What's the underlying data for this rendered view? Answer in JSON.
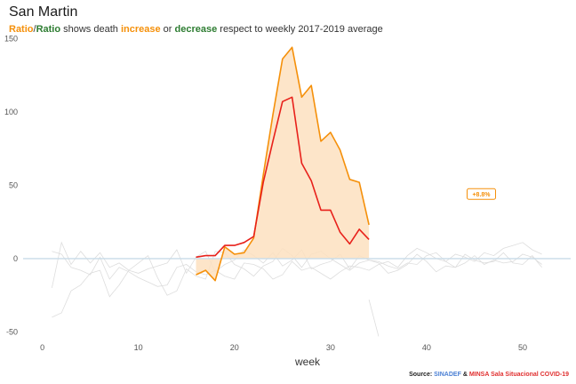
{
  "title": "San Martin",
  "subtitle": {
    "ratio_orange": "Ratio",
    "slash": "/",
    "ratio_green": "Ratio",
    "text1": " shows death ",
    "increase": "increase",
    "text2": " or ",
    "decrease": "decrease",
    "text3": " respect to weekly 2017-2019 average"
  },
  "source": {
    "label": "Source:",
    "sinadef": "SINADEF",
    "amp": "&",
    "minsa": "MINSA Sala Situacional COVID-19"
  },
  "colors": {
    "orange": "#f5900a",
    "red": "#e8211b",
    "fill": "#fde1c0",
    "baseline": "#c8dbe8",
    "gray": "#dddddd",
    "green": "#2e7d32"
  },
  "chart_data": {
    "type": "line",
    "xlabel": "week",
    "ylabel": "",
    "xlim": [
      -2,
      55
    ],
    "ylim": [
      -57,
      152
    ],
    "x_ticks": [
      0,
      10,
      20,
      30,
      40,
      50
    ],
    "y_ticks": [
      -50,
      0,
      50,
      100,
      150
    ],
    "series": [
      {
        "role": "orange",
        "x": [
          16,
          17,
          18,
          19,
          20,
          21,
          22,
          23,
          24,
          25,
          26,
          27,
          28,
          29,
          30,
          31,
          32,
          33,
          34
        ],
        "values": [
          -11,
          -8,
          -15,
          8,
          3,
          4,
          14,
          57,
          98,
          136,
          144,
          110,
          118,
          80,
          86,
          74,
          54,
          52,
          23
        ]
      },
      {
        "role": "red",
        "x": [
          16,
          17,
          18,
          19,
          20,
          21,
          22,
          23,
          24,
          25,
          26,
          27,
          28,
          29,
          30,
          31,
          32,
          33,
          34
        ],
        "values": [
          1,
          2,
          2,
          9,
          9,
          11,
          15,
          52,
          80,
          107,
          110,
          65,
          53,
          33,
          33,
          18,
          10,
          20,
          13
        ]
      },
      {
        "role": "gray",
        "x": [
          1,
          2,
          3,
          4,
          5,
          6,
          7,
          8,
          9,
          10,
          11,
          12,
          13,
          14,
          15,
          16,
          17,
          18,
          19,
          20,
          21,
          22,
          23,
          24,
          25,
          26,
          27,
          28,
          29,
          30,
          31,
          32,
          33,
          34,
          35,
          36,
          37,
          38,
          39,
          40,
          41,
          42,
          43,
          44,
          45,
          46,
          47,
          48,
          49,
          50,
          51,
          52
        ],
        "values": [
          -20,
          11,
          -4,
          5,
          -3,
          4,
          -6,
          -3,
          -8,
          -10,
          -7,
          -5,
          -3,
          6,
          -10,
          1,
          5,
          -9,
          -4,
          -1,
          6,
          2,
          -3,
          4,
          -5,
          -1,
          6,
          -7,
          -4,
          -2,
          3,
          -7,
          2,
          -1,
          -3,
          -10,
          -8,
          -4,
          3,
          -2,
          -9,
          -5,
          -6,
          3,
          -1,
          -3,
          -2,
          4,
          -3,
          -4,
          2,
          -6
        ]
      },
      {
        "role": "gray",
        "x": [
          1,
          2,
          3,
          4,
          5,
          6,
          7,
          8,
          9,
          10,
          11,
          12,
          13,
          14,
          15,
          16,
          17,
          18,
          19,
          20,
          21,
          22,
          23,
          24,
          25,
          26,
          27,
          28,
          29,
          30,
          31,
          32,
          33,
          34,
          35,
          36,
          37,
          38,
          39,
          40,
          41,
          42,
          43,
          44,
          45,
          46,
          47,
          48,
          49,
          50,
          51,
          52
        ],
        "values": [
          -40,
          -37,
          -22,
          -18,
          -10,
          -8,
          -26,
          -18,
          -8,
          -3,
          2,
          -13,
          -25,
          -22,
          -7,
          -12,
          -14,
          5,
          4,
          -4,
          -7,
          -12,
          -5,
          -2,
          7,
          2,
          -6,
          3,
          5,
          0,
          -4,
          -8,
          -3,
          -1,
          -2,
          -5,
          -7,
          -3,
          -4,
          2,
          4,
          -2,
          -6,
          -3,
          2,
          -4,
          -1,
          -3,
          -2,
          3,
          1,
          -4
        ]
      },
      {
        "role": "gray",
        "x": [
          1,
          2,
          3,
          4,
          5,
          6,
          7,
          8,
          9,
          10,
          11,
          12,
          13,
          14,
          15,
          16,
          17,
          18,
          19,
          20,
          21,
          22,
          23,
          24,
          25,
          26,
          27,
          28,
          29,
          30,
          31,
          32,
          33,
          34,
          35,
          36,
          37,
          38,
          39,
          40,
          41,
          42,
          43,
          44,
          45,
          46,
          47,
          48,
          49,
          50,
          51,
          52
        ],
        "values": [
          5,
          3,
          -6,
          -8,
          -11,
          1,
          -14,
          -6,
          -9,
          -13,
          -16,
          -19,
          -18,
          -6,
          -4,
          -9,
          -11,
          -8,
          -12,
          -14,
          -3,
          -4,
          -7,
          -14,
          -11,
          -2,
          -8,
          -6,
          -10,
          -14,
          -9,
          -5,
          -6,
          -8,
          -4,
          -2,
          -6,
          2,
          7,
          4,
          0,
          -2,
          3,
          1,
          -2,
          4,
          2,
          7,
          9,
          11,
          6,
          3
        ]
      },
      {
        "role": "gray",
        "x": [
          34,
          35
        ],
        "values": [
          -28,
          -53
        ]
      }
    ],
    "label_box": {
      "x": 45.7,
      "y": 44,
      "text": "+8.8%"
    }
  }
}
